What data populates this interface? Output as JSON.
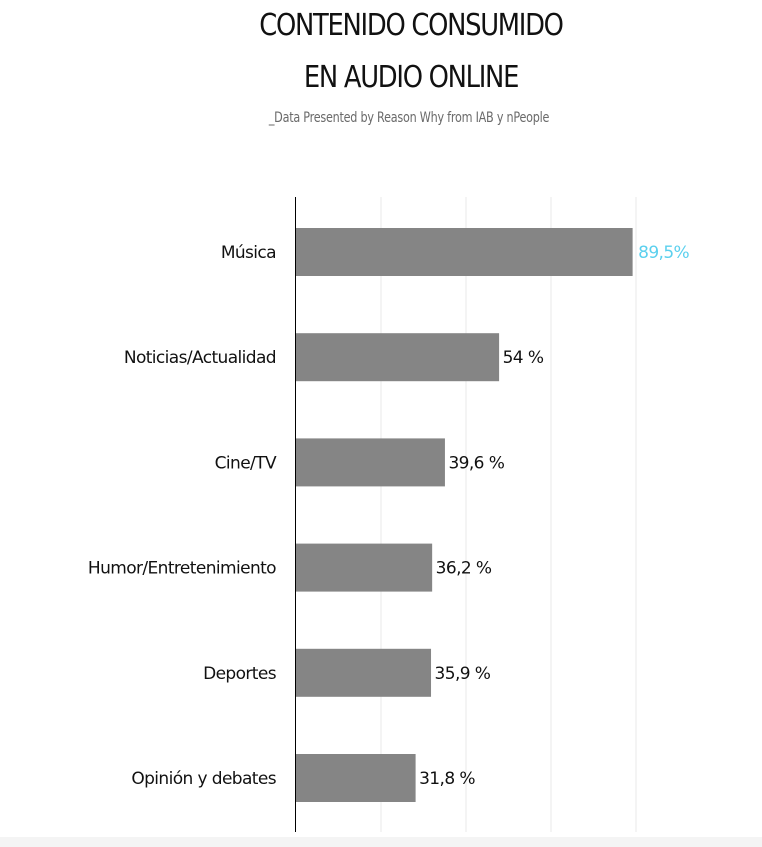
{
  "header": {
    "title_line1": "CONTENIDO CONSUMIDO",
    "title_line2": "EN AUDIO ONLINE",
    "subtitle": "_Data Presented by Reason Why from IAB y nPeople"
  },
  "colors": {
    "bar": "#858585",
    "highlight_label": "#5bd0ee",
    "label": "#111111",
    "grid": "#e8e8e8",
    "axis": "#000000"
  },
  "chart_data": {
    "type": "bar",
    "orientation": "horizontal",
    "categories": [
      "Música",
      "Noticias/Actualidad",
      "Cine/TV",
      "Humor/Entretenimiento",
      "Deportes",
      "Opinión y debates"
    ],
    "values": [
      89.5,
      54,
      39.6,
      36.2,
      35.9,
      31.8
    ],
    "value_labels": [
      "89,5%",
      "54 %",
      "39,6 %",
      "36,2 %",
      "35,9 %",
      "31,8 %"
    ],
    "highlight_index": 0,
    "xlim": [
      0,
      90
    ],
    "grid": true,
    "legend": "none"
  }
}
